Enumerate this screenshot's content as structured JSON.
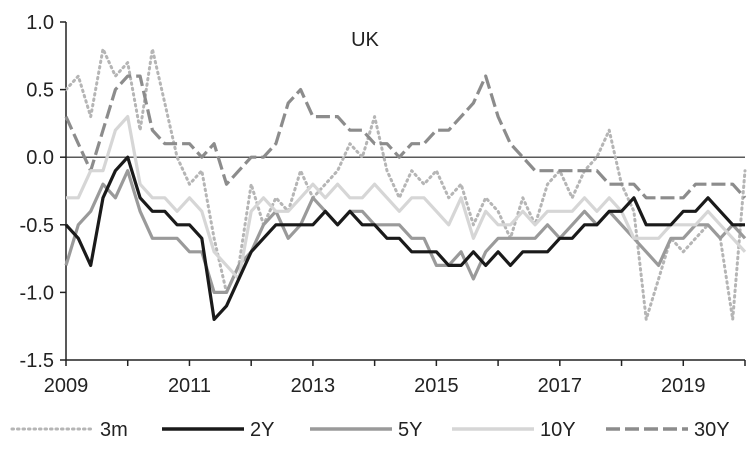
{
  "chart_data": {
    "type": "line",
    "title": "UK",
    "xlabel": "",
    "ylabel": "",
    "xlim": [
      2009,
      2020
    ],
    "ylim": [
      -1.5,
      1.0
    ],
    "x_ticks": [
      "2009",
      "2011",
      "2013",
      "2015",
      "2017",
      "2019"
    ],
    "y_ticks": [
      "1.0",
      "0.5",
      "0.0",
      "-0.5",
      "-1.0",
      "-1.5"
    ],
    "zero_line": true,
    "grid": false,
    "legend_position": "bottom",
    "series": [
      {
        "name": "3m",
        "color": "#b5b5b5",
        "style": "dotted",
        "x": [
          2009.0,
          2009.2,
          2009.4,
          2009.6,
          2009.8,
          2010.0,
          2010.2,
          2010.4,
          2010.6,
          2010.8,
          2011.0,
          2011.2,
          2011.4,
          2011.6,
          2011.8,
          2012.0,
          2012.2,
          2012.4,
          2012.6,
          2012.8,
          2013.0,
          2013.2,
          2013.4,
          2013.6,
          2013.8,
          2014.0,
          2014.2,
          2014.4,
          2014.6,
          2014.8,
          2015.0,
          2015.2,
          2015.4,
          2015.6,
          2015.8,
          2016.0,
          2016.2,
          2016.4,
          2016.6,
          2016.8,
          2017.0,
          2017.2,
          2017.4,
          2017.6,
          2017.8,
          2018.0,
          2018.2,
          2018.4,
          2018.6,
          2018.8,
          2019.0,
          2019.2,
          2019.4,
          2019.6,
          2019.8,
          2020.0
        ],
        "y": [
          0.5,
          0.6,
          0.3,
          0.8,
          0.6,
          0.7,
          0.2,
          0.8,
          0.4,
          0.0,
          -0.2,
          -0.1,
          -0.6,
          -1.0,
          -0.8,
          -0.2,
          -0.5,
          -0.3,
          -0.4,
          -0.1,
          -0.3,
          -0.2,
          -0.1,
          0.1,
          0.0,
          0.3,
          -0.1,
          -0.3,
          -0.1,
          -0.2,
          -0.1,
          -0.3,
          -0.2,
          -0.5,
          -0.3,
          -0.4,
          -0.6,
          -0.3,
          -0.5,
          -0.2,
          -0.1,
          -0.3,
          -0.1,
          0.0,
          0.2,
          -0.2,
          -0.4,
          -1.2,
          -0.9,
          -0.6,
          -0.7,
          -0.6,
          -0.5,
          -0.6,
          -1.2,
          -0.1
        ]
      },
      {
        "name": "2Y",
        "color": "#1a1a1a",
        "style": "solid",
        "x": [
          2009.0,
          2009.2,
          2009.4,
          2009.6,
          2009.8,
          2010.0,
          2010.2,
          2010.4,
          2010.6,
          2010.8,
          2011.0,
          2011.2,
          2011.4,
          2011.6,
          2011.8,
          2012.0,
          2012.2,
          2012.4,
          2012.6,
          2012.8,
          2013.0,
          2013.2,
          2013.4,
          2013.6,
          2013.8,
          2014.0,
          2014.2,
          2014.4,
          2014.6,
          2014.8,
          2015.0,
          2015.2,
          2015.4,
          2015.6,
          2015.8,
          2016.0,
          2016.2,
          2016.4,
          2016.6,
          2016.8,
          2017.0,
          2017.2,
          2017.4,
          2017.6,
          2017.8,
          2018.0,
          2018.2,
          2018.4,
          2018.6,
          2018.8,
          2019.0,
          2019.2,
          2019.4,
          2019.6,
          2019.8,
          2020.0
        ],
        "y": [
          -0.5,
          -0.6,
          -0.8,
          -0.3,
          -0.1,
          0.0,
          -0.3,
          -0.4,
          -0.4,
          -0.5,
          -0.5,
          -0.6,
          -1.2,
          -1.1,
          -0.9,
          -0.7,
          -0.6,
          -0.5,
          -0.5,
          -0.5,
          -0.5,
          -0.4,
          -0.5,
          -0.4,
          -0.5,
          -0.5,
          -0.6,
          -0.6,
          -0.7,
          -0.7,
          -0.7,
          -0.8,
          -0.8,
          -0.7,
          -0.8,
          -0.7,
          -0.8,
          -0.7,
          -0.7,
          -0.7,
          -0.6,
          -0.6,
          -0.5,
          -0.5,
          -0.4,
          -0.4,
          -0.3,
          -0.5,
          -0.5,
          -0.5,
          -0.4,
          -0.4,
          -0.3,
          -0.4,
          -0.5,
          -0.5
        ]
      },
      {
        "name": "5Y",
        "color": "#9a9a9a",
        "style": "solid",
        "x": [
          2009.0,
          2009.2,
          2009.4,
          2009.6,
          2009.8,
          2010.0,
          2010.2,
          2010.4,
          2010.6,
          2010.8,
          2011.0,
          2011.2,
          2011.4,
          2011.6,
          2011.8,
          2012.0,
          2012.2,
          2012.4,
          2012.6,
          2012.8,
          2013.0,
          2013.2,
          2013.4,
          2013.6,
          2013.8,
          2014.0,
          2014.2,
          2014.4,
          2014.6,
          2014.8,
          2015.0,
          2015.2,
          2015.4,
          2015.6,
          2015.8,
          2016.0,
          2016.2,
          2016.4,
          2016.6,
          2016.8,
          2017.0,
          2017.2,
          2017.4,
          2017.6,
          2017.8,
          2018.0,
          2018.2,
          2018.4,
          2018.6,
          2018.8,
          2019.0,
          2019.2,
          2019.4,
          2019.6,
          2019.8,
          2020.0
        ],
        "y": [
          -0.8,
          -0.5,
          -0.4,
          -0.2,
          -0.3,
          -0.1,
          -0.4,
          -0.6,
          -0.6,
          -0.6,
          -0.7,
          -0.7,
          -1.0,
          -1.0,
          -0.8,
          -0.7,
          -0.5,
          -0.4,
          -0.6,
          -0.5,
          -0.3,
          -0.4,
          -0.5,
          -0.4,
          -0.4,
          -0.5,
          -0.5,
          -0.5,
          -0.6,
          -0.6,
          -0.8,
          -0.8,
          -0.7,
          -0.9,
          -0.7,
          -0.6,
          -0.6,
          -0.6,
          -0.6,
          -0.5,
          -0.6,
          -0.5,
          -0.4,
          -0.5,
          -0.4,
          -0.5,
          -0.6,
          -0.7,
          -0.8,
          -0.6,
          -0.6,
          -0.5,
          -0.5,
          -0.6,
          -0.5,
          -0.6
        ]
      },
      {
        "name": "10Y",
        "color": "#d6d6d6",
        "style": "solid",
        "x": [
          2009.0,
          2009.2,
          2009.4,
          2009.6,
          2009.8,
          2010.0,
          2010.2,
          2010.4,
          2010.6,
          2010.8,
          2011.0,
          2011.2,
          2011.4,
          2011.6,
          2011.8,
          2012.0,
          2012.2,
          2012.4,
          2012.6,
          2012.8,
          2013.0,
          2013.2,
          2013.4,
          2013.6,
          2013.8,
          2014.0,
          2014.2,
          2014.4,
          2014.6,
          2014.8,
          2015.0,
          2015.2,
          2015.4,
          2015.6,
          2015.8,
          2016.0,
          2016.2,
          2016.4,
          2016.6,
          2016.8,
          2017.0,
          2017.2,
          2017.4,
          2017.6,
          2017.8,
          2018.0,
          2018.2,
          2018.4,
          2018.6,
          2018.8,
          2019.0,
          2019.2,
          2019.4,
          2019.6,
          2019.8,
          2020.0
        ],
        "y": [
          -0.3,
          -0.3,
          -0.1,
          -0.1,
          0.2,
          0.3,
          -0.2,
          -0.3,
          -0.3,
          -0.4,
          -0.3,
          -0.4,
          -0.7,
          -0.8,
          -0.9,
          -0.4,
          -0.3,
          -0.4,
          -0.4,
          -0.3,
          -0.2,
          -0.3,
          -0.2,
          -0.3,
          -0.3,
          -0.2,
          -0.3,
          -0.4,
          -0.3,
          -0.3,
          -0.4,
          -0.5,
          -0.3,
          -0.6,
          -0.4,
          -0.5,
          -0.5,
          -0.4,
          -0.5,
          -0.4,
          -0.4,
          -0.4,
          -0.3,
          -0.4,
          -0.3,
          -0.4,
          -0.6,
          -0.6,
          -0.6,
          -0.5,
          -0.5,
          -0.5,
          -0.4,
          -0.5,
          -0.6,
          -0.7
        ]
      },
      {
        "name": "30Y",
        "color": "#8c8c8c",
        "style": "dashed",
        "x": [
          2009.0,
          2009.2,
          2009.4,
          2009.6,
          2009.8,
          2010.0,
          2010.2,
          2010.4,
          2010.6,
          2010.8,
          2011.0,
          2011.2,
          2011.4,
          2011.6,
          2011.8,
          2012.0,
          2012.2,
          2012.4,
          2012.6,
          2012.8,
          2013.0,
          2013.2,
          2013.4,
          2013.6,
          2013.8,
          2014.0,
          2014.2,
          2014.4,
          2014.6,
          2014.8,
          2015.0,
          2015.2,
          2015.4,
          2015.6,
          2015.8,
          2016.0,
          2016.2,
          2016.4,
          2016.6,
          2016.8,
          2017.0,
          2017.2,
          2017.4,
          2017.6,
          2017.8,
          2018.0,
          2018.2,
          2018.4,
          2018.6,
          2018.8,
          2019.0,
          2019.2,
          2019.4,
          2019.6,
          2019.8,
          2020.0
        ],
        "y": [
          0.3,
          0.1,
          -0.1,
          0.2,
          0.5,
          0.6,
          0.6,
          0.2,
          0.1,
          0.1,
          0.1,
          0.0,
          0.1,
          -0.2,
          -0.1,
          0.0,
          0.0,
          0.1,
          0.4,
          0.5,
          0.3,
          0.3,
          0.3,
          0.2,
          0.2,
          0.1,
          0.1,
          0.0,
          0.1,
          0.1,
          0.2,
          0.2,
          0.3,
          0.4,
          0.6,
          0.3,
          0.1,
          0.0,
          -0.1,
          -0.1,
          -0.1,
          -0.1,
          -0.1,
          -0.1,
          -0.2,
          -0.2,
          -0.2,
          -0.3,
          -0.3,
          -0.3,
          -0.3,
          -0.2,
          -0.2,
          -0.2,
          -0.2,
          -0.3
        ]
      }
    ]
  }
}
